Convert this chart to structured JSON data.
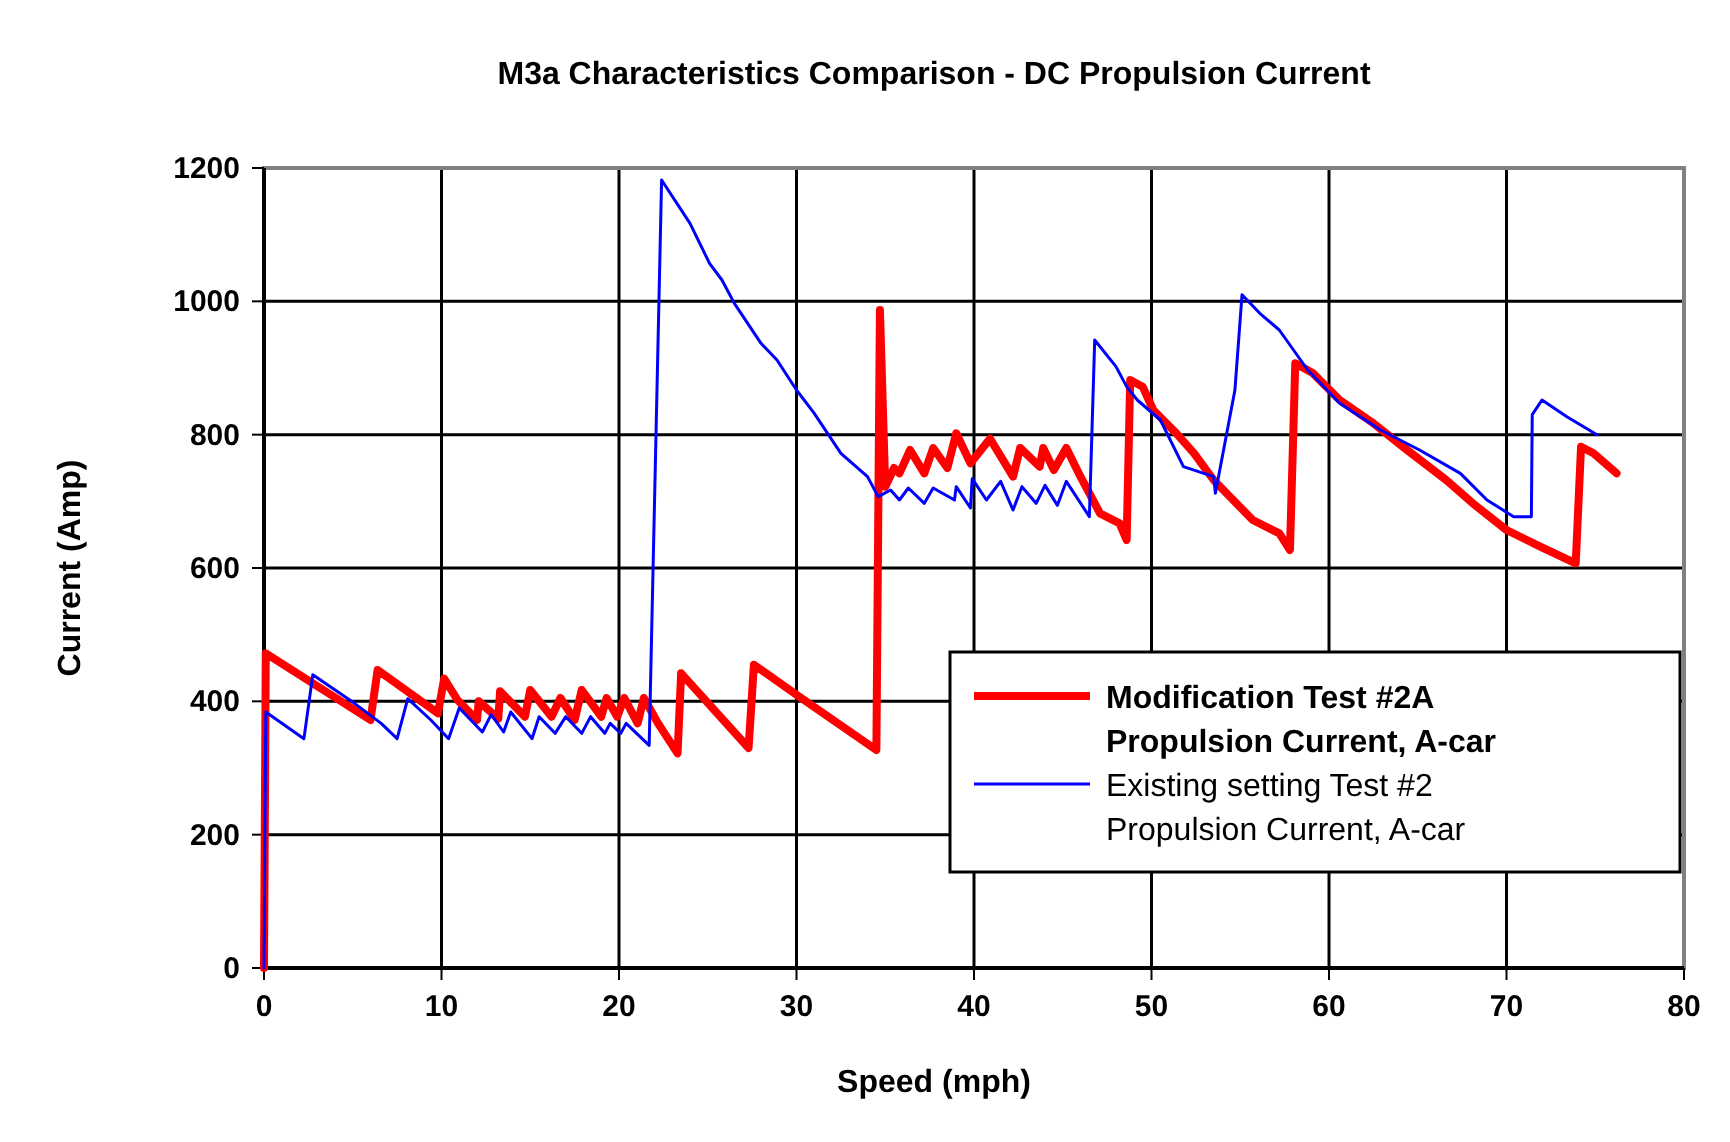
{
  "chart_data": {
    "type": "line",
    "title": "M3a Characteristics Comparison - DC Propulsion Current",
    "xlabel": "Speed (mph)",
    "ylabel": "Current (Amp)",
    "xlim": [
      0,
      80
    ],
    "xticks": [
      0,
      10,
      20,
      30,
      40,
      50,
      60,
      70,
      80
    ],
    "ylim": [
      0,
      1200
    ],
    "yticks": [
      0,
      200,
      400,
      600,
      800,
      1000,
      1200
    ],
    "grid": true,
    "legend": "bottom right",
    "marker": "none",
    "line_style": "solid",
    "series": [
      {
        "name": "Modification Test #2A Propulsion Current, A-car",
        "color": "#ff0000",
        "x": [
          0,
          0.1,
          6.0,
          6.4,
          9.8,
          10.15,
          10.9,
          12.0,
          12.1,
          13.2,
          13.3,
          14.7,
          15.0,
          16.2,
          16.7,
          17.5,
          17.9,
          19.0,
          19.3,
          19.9,
          20.3,
          21.05,
          21.4,
          22.2,
          23.3,
          23.5,
          27.3,
          27.6,
          30,
          34.5,
          34.7,
          35.0,
          35.5,
          35.8,
          36.4,
          37.2,
          37.7,
          38.5,
          39.0,
          39.8,
          40.9,
          42.2,
          42.6,
          43.7,
          43.9,
          44.5,
          45.2,
          46.0,
          47.1,
          48.2,
          48.6,
          48.8,
          49.5,
          50.1,
          51.4,
          52.4,
          53.5,
          54.6,
          55.7,
          57.2,
          57.8,
          58.1,
          59.1,
          60.6,
          62.5,
          64.4,
          66.6,
          68.1,
          70.0,
          71.9,
          73.9,
          74.2,
          74.9,
          76.2
        ],
        "values": [
          0,
          472,
          372,
          447,
          382,
          434,
          402,
          372,
          400,
          374,
          415,
          377,
          417,
          377,
          405,
          372,
          417,
          377,
          405,
          377,
          405,
          367,
          405,
          367,
          322,
          442,
          330,
          455,
          410,
          327,
          987,
          722,
          750,
          742,
          777,
          742,
          780,
          750,
          802,
          757,
          794,
          737,
          780,
          752,
          780,
          747,
          780,
          737,
          682,
          667,
          642,
          882,
          872,
          837,
          802,
          772,
          732,
          702,
          672,
          652,
          627,
          907,
          892,
          852,
          817,
          777,
          732,
          697,
          657,
          632,
          607,
          782,
          772,
          742
        ]
      },
      {
        "name": "Existing setting Test #2 Propulsion Current, A-car",
        "color": "#0000ff",
        "x": [
          0,
          0.1,
          2.25,
          2.75,
          5.1,
          6.6,
          7.5,
          8.1,
          9.4,
          10.4,
          11.0,
          12.3,
          12.8,
          13.5,
          13.9,
          15.1,
          15.5,
          16.4,
          17.0,
          17.9,
          18.4,
          19.2,
          19.5,
          20.1,
          20.4,
          21.7,
          22.4,
          24.0,
          25.1,
          25.8,
          26.5,
          28.0,
          28.9,
          30.0,
          31.0,
          32.5,
          34.0,
          34.6,
          35.3,
          35.8,
          36.3,
          37.2,
          37.7,
          38.9,
          39.0,
          39.8,
          39.9,
          40.7,
          41.5,
          42.2,
          42.7,
          43.5,
          44.0,
          44.7,
          45.2,
          46.5,
          46.8,
          48.0,
          48.6,
          49.2,
          50.5,
          51.8,
          53.5,
          53.6,
          54.7,
          55.1,
          56.1,
          57.2,
          58.8,
          60.6,
          62.9,
          65.1,
          67.4,
          68.9,
          70.4,
          71.4,
          71.45,
          72.0,
          73.4,
          75.1
        ],
        "values": [
          0,
          384,
          344,
          440,
          397,
          367,
          344,
          404,
          372,
          344,
          390,
          354,
          380,
          354,
          384,
          344,
          377,
          352,
          377,
          352,
          377,
          352,
          367,
          352,
          367,
          334,
          1182,
          1117,
          1057,
          1032,
          997,
          937,
          912,
          867,
          832,
          772,
          737,
          707,
          717,
          702,
          720,
          697,
          720,
          702,
          722,
          690,
          734,
          702,
          730,
          687,
          722,
          697,
          724,
          694,
          730,
          677,
          942,
          902,
          872,
          852,
          822,
          752,
          737,
          712,
          867,
          1010,
          982,
          957,
          897,
          847,
          807,
          777,
          742,
          702,
          677,
          677,
          830,
          852,
          827,
          800
        ]
      }
    ]
  }
}
